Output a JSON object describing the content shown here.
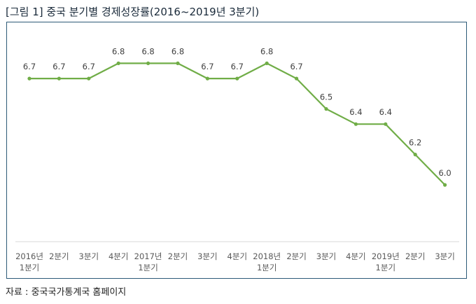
{
  "title": "[그림 1] 중국 분기별 경제성장률(2016~2019년 3분기)",
  "source": "자료 : 중국국가통계국 홈페이지",
  "chart_data": {
    "type": "line",
    "title": "[그림 1] 중국 분기별 경제성장률(2016~2019년 3분기)",
    "categories": [
      [
        "2016년",
        "1분기"
      ],
      [
        "2분기"
      ],
      [
        "3분기"
      ],
      [
        "4분기"
      ],
      [
        "2017년",
        "1분기"
      ],
      [
        "2분기"
      ],
      [
        "3분기"
      ],
      [
        "4분기"
      ],
      [
        "2018년",
        "1분기"
      ],
      [
        "2분기"
      ],
      [
        "3분기"
      ],
      [
        "4분기"
      ],
      [
        "2019년",
        "1분기"
      ],
      [
        "2분기"
      ],
      [
        "3분기"
      ]
    ],
    "values": [
      6.7,
      6.7,
      6.7,
      6.8,
      6.8,
      6.8,
      6.7,
      6.7,
      6.8,
      6.7,
      6.5,
      6.4,
      6.4,
      6.2,
      6.0
    ],
    "value_labels": [
      "6.7",
      "6.7",
      "6.7",
      "6.8",
      "6.8",
      "6.8",
      "6.7",
      "6.7",
      "6.8",
      "6.7",
      "6.5",
      "6.4",
      "6.4",
      "6.2",
      "6.0"
    ],
    "ylim": [
      5.62,
      7.0
    ],
    "grid": false,
    "color": "#70ad47",
    "xlabel": "",
    "ylabel": ""
  }
}
